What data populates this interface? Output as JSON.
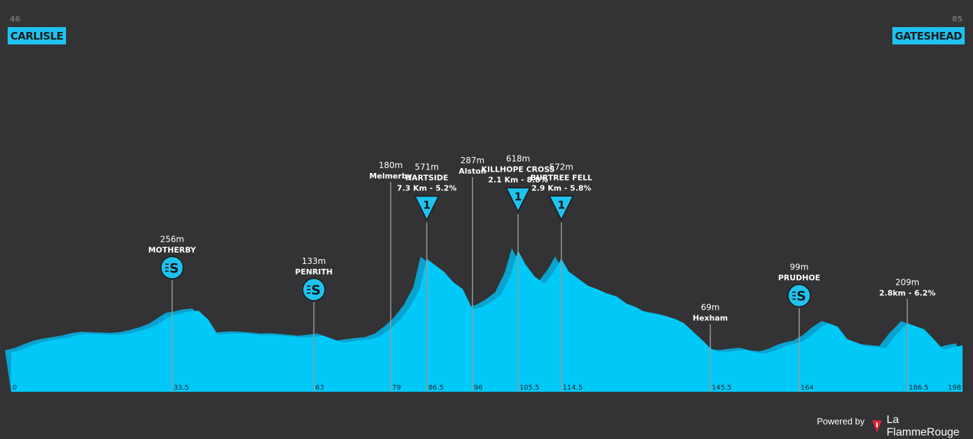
{
  "route": {
    "start": {
      "name": "CARLISLE",
      "elevation": "46"
    },
    "finish": {
      "name": "GATESHEAD",
      "elevation": "85"
    }
  },
  "chart_data": {
    "type": "area",
    "xlabel": "",
    "ylabel": "",
    "xlim": [
      0,
      198
    ],
    "ylim": [
      0,
      700
    ],
    "x_ticks": [
      "0",
      "33.5",
      "63",
      "79",
      "86.5",
      "96",
      "105.5",
      "114.5",
      "145.5",
      "164",
      "186.5",
      "198"
    ],
    "profile_km": [
      0,
      2,
      4,
      6,
      8,
      10,
      12,
      14,
      16,
      18,
      20,
      22,
      24,
      26,
      28,
      30,
      32,
      33.5,
      35,
      37,
      39,
      41,
      43,
      45,
      47,
      49,
      51,
      53,
      55,
      57,
      59,
      61,
      63,
      65,
      67,
      69,
      71,
      73,
      75,
      77,
      79,
      81,
      83,
      85,
      86.5,
      88,
      90,
      92,
      94,
      96,
      98,
      100,
      102,
      104,
      105.5,
      107,
      109,
      111,
      113,
      114.5,
      116,
      118,
      120,
      122,
      124,
      126,
      128,
      130,
      132,
      134,
      136,
      138,
      140,
      142,
      144,
      145.5,
      147,
      149,
      151,
      153,
      155,
      157,
      159,
      161,
      163,
      164,
      166,
      168,
      170,
      172,
      174,
      176,
      178,
      180,
      182,
      184,
      186.5,
      188,
      190,
      192,
      194,
      196,
      198
    ],
    "profile_m": [
      46,
      58,
      80,
      100,
      112,
      120,
      130,
      143,
      150,
      147,
      145,
      143,
      148,
      160,
      175,
      195,
      230,
      256,
      262,
      275,
      280,
      230,
      145,
      148,
      152,
      150,
      145,
      140,
      142,
      138,
      133,
      128,
      133,
      140,
      120,
      100,
      108,
      115,
      120,
      140,
      180,
      230,
      300,
      400,
      571,
      540,
      500,
      440,
      400,
      287,
      300,
      330,
      370,
      480,
      618,
      540,
      470,
      430,
      500,
      572,
      500,
      460,
      420,
      400,
      375,
      360,
      320,
      300,
      270,
      260,
      250,
      235,
      210,
      160,
      110,
      69,
      50,
      48,
      55,
      60,
      45,
      40,
      55,
      80,
      95,
      99,
      130,
      175,
      210,
      190,
      120,
      100,
      80,
      75,
      70,
      140,
      209,
      195,
      175,
      120,
      60,
      75,
      85
    ],
    "points": [
      {
        "km": "33.5",
        "elevation": "256m",
        "name": "MOTHERBY",
        "detail": "",
        "type": "sprint"
      },
      {
        "km": "63",
        "elevation": "133m",
        "name": "PENRITH",
        "detail": "",
        "type": "sprint"
      },
      {
        "km": "79",
        "elevation": "180m",
        "name": "Melmerby",
        "detail": "",
        "type": "place"
      },
      {
        "km": "86.5",
        "elevation": "571m",
        "name": "HARTSIDE",
        "detail": "7.3 Km - 5.2%",
        "type": "climb",
        "category": "1"
      },
      {
        "km": "96",
        "elevation": "287m",
        "name": "Alston",
        "detail": "",
        "type": "place"
      },
      {
        "km": "105.5",
        "elevation": "618m",
        "name": "KILLHOPE CROSS",
        "detail": "2.1 Km - 8.8%",
        "type": "climb",
        "category": "1"
      },
      {
        "km": "114.5",
        "elevation": "572m",
        "name": "BURTREE FELL",
        "detail": "2.9 Km - 5.8%",
        "type": "climb",
        "category": "1"
      },
      {
        "km": "145.5",
        "elevation": "69m",
        "name": "Hexham",
        "detail": "",
        "type": "place"
      },
      {
        "km": "164",
        "elevation": "99m",
        "name": "PRUDHOE",
        "detail": "",
        "type": "sprint"
      },
      {
        "km": "186.5",
        "elevation": "209m",
        "name": "",
        "detail": "2.8km - 6.2%",
        "type": "place"
      }
    ]
  },
  "colors": {
    "background": "#333335",
    "profile": "#00c9f7",
    "profile_shadow": "#0aa3cf",
    "accent": "#1fc2ee",
    "marker_line": "#9a9a9a",
    "brand_red": "#e4233b"
  },
  "icons": {
    "sprint": "sprint-icon",
    "climb": "climb-category-icon",
    "brand": "flamme-rouge-icon"
  },
  "footer": {
    "powered_by": "Powered by",
    "brand_name": "La FlammeRouge"
  }
}
